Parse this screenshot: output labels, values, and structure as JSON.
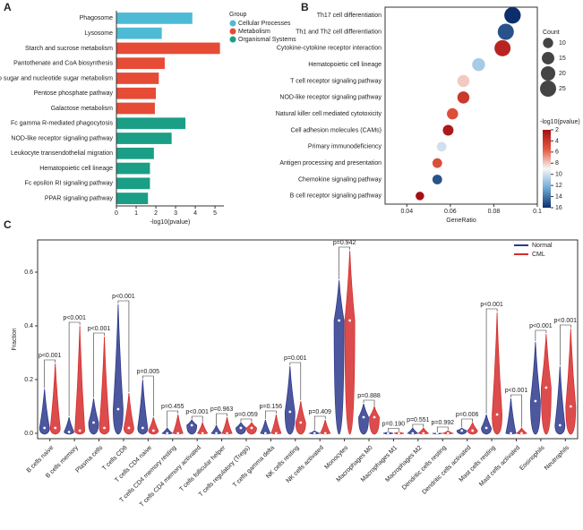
{
  "chart_data": [
    {
      "type": "bar",
      "panel": "A",
      "orientation": "horizontal",
      "categories": [
        "Phagosome",
        "Lysosome",
        "Starch and sucrose metabolism",
        "Pantothenate and CoA biosynthesis",
        "Amino sugar and nucleotide sugar metabolism",
        "Pentose phosphate pathway",
        "Galactose metabolism",
        "Fc gamma R-mediated phagocytosis",
        "NOD-like receptor signaling pathway",
        "Leukocyte transendothelial migration",
        "Hematopoietic cell lineage",
        "Fc epsilon RI signaling pathway",
        "PPAR signaling pathway"
      ],
      "series": [
        {
          "name": "Cellular Processes",
          "color": "#4dbbd5",
          "values": [
            3.85,
            2.3,
            null,
            null,
            null,
            null,
            null,
            null,
            null,
            null,
            null,
            null,
            null
          ]
        },
        {
          "name": "Metabolism",
          "color": "#e64b35",
          "values": [
            null,
            null,
            5.25,
            2.45,
            2.15,
            2.0,
            1.95,
            null,
            null,
            null,
            null,
            null,
            null
          ]
        },
        {
          "name": "Organismal Systems",
          "color": "#1a9e86",
          "values": [
            null,
            null,
            null,
            null,
            null,
            null,
            null,
            3.5,
            2.8,
            1.9,
            1.7,
            1.7,
            1.6
          ]
        }
      ],
      "legend_title": "Group",
      "xlabel": "-log10(pvalue)",
      "xlim": [
        0,
        5.45
      ],
      "xticks": [
        0,
        1,
        2,
        3,
        4,
        5
      ]
    },
    {
      "type": "scatter",
      "panel": "B",
      "categories": [
        "Th17 cell differentiation",
        "Th1 and Th2 cell differentiation",
        "Cytokine-cytokine receptor interaction",
        "Hematopoietic cell lineage",
        "T cell receptor signaling pathway",
        "NOD-like receptor signaling pathway",
        "Natural killer cell mediated cytotoxicity",
        "Cell adhesion molecules (CAMs)",
        "Primary immunodeficiency",
        "Antigen processing and presentation",
        "Chemokine signaling pathway",
        "B cell receptor signaling pathway"
      ],
      "x": [
        0.0886,
        0.0855,
        0.084,
        0.073,
        0.066,
        0.066,
        0.061,
        0.059,
        0.056,
        0.054,
        0.054,
        0.046
      ],
      "size": [
        26,
        25,
        25,
        16,
        14,
        14,
        12,
        11,
        9,
        9,
        9,
        7
      ],
      "color_values": [
        16,
        15,
        3,
        11,
        8,
        4,
        5,
        2.5,
        10,
        5,
        15,
        2
      ],
      "xlabel": "GeneRatio",
      "xlim": [
        0.03,
        0.1
      ],
      "xticks": [
        0.04,
        0.06,
        0.08,
        0.1
      ],
      "size_title": "Count",
      "size_legend": [
        10,
        15,
        20,
        25
      ],
      "color_title": "-log10(pvalue)",
      "colorbar_lim": [
        2,
        16
      ],
      "colorbar_ticks": [
        2,
        4,
        6,
        8,
        10,
        12,
        14,
        16
      ],
      "colormap": [
        "#a50f15",
        "#e4583e",
        "#f7f7f7",
        "#6fa8d6",
        "#0b2f6b"
      ]
    },
    {
      "type": "violin",
      "panel": "C",
      "categories": [
        "B cells naive",
        "B cells memory",
        "Plasma cells",
        "T cells CD8",
        "T cells CD4 naive",
        "T cells CD4 memory resting",
        "T cells CD4 memory activated",
        "T cells follicular helper",
        "T cells regulatory (Tregs)",
        "T cells gamma delta",
        "NK cells resting",
        "NK cells activated",
        "Monocytes",
        "Macrophages M0",
        "Macrophages M1",
        "Macrophages M2",
        "Dendritic cells resting",
        "Dendritic cells activated",
        "Mast cells resting",
        "Mast cells activated",
        "Eosinophils",
        "Neutrophils"
      ],
      "series": [
        {
          "name": "Normal",
          "color": "#2e3a8c",
          "values": [
            0.02,
            0.005,
            0.04,
            0.09,
            0.02,
            0.0,
            0.03,
            0.0,
            0.02,
            0.0,
            0.08,
            0.0,
            0.42,
            0.06,
            0.0,
            0.0,
            0.0,
            0.01,
            0.02,
            0.0,
            0.12,
            0.03
          ],
          "max": [
            0.165,
            0.06,
            0.13,
            0.48,
            0.2,
            0.02,
            0.05,
            0.03,
            0.04,
            0.05,
            0.25,
            0.01,
            0.57,
            0.11,
            0.005,
            0.02,
            0.0,
            0.02,
            0.07,
            0.13,
            0.34,
            0.25
          ]
        },
        {
          "name": "CML",
          "color": "#d62d2d",
          "values": [
            0.02,
            0.01,
            0.02,
            0.02,
            0.01,
            0.0,
            0.0,
            0.0,
            0.02,
            0.0,
            0.04,
            0.0,
            0.42,
            0.06,
            0.0,
            0.0,
            0.0,
            0.01,
            0.07,
            0.0,
            0.17,
            0.1
          ],
          "max": [
            0.26,
            0.4,
            0.36,
            0.15,
            0.06,
            0.07,
            0.04,
            0.06,
            0.04,
            0.07,
            0.12,
            0.05,
            0.68,
            0.1,
            0.005,
            0.02,
            0.01,
            0.04,
            0.45,
            0.02,
            0.37,
            0.39
          ]
        }
      ],
      "p_labels": [
        "p<0.001",
        "p<0.001",
        "p<0.001",
        "p<0.001",
        "p=0.005",
        "p=0.455",
        "p<0.001",
        "p=0.963",
        "p=0.059",
        "p=0.156",
        "p=0.001",
        "p=0.409",
        "p=0.942",
        "p=0.888",
        "p=0.190",
        "p=0.551",
        "p=0.992",
        "p=0.006",
        "p<0.001",
        "p<0.001",
        "p<0.001",
        "p<0.001"
      ],
      "ylabel": "Fraction",
      "ylim": [
        -0.02,
        0.72
      ],
      "yticks": [
        {
          "value": 0,
          "label": "0.0"
        },
        0.2,
        0.4,
        0.6
      ]
    }
  ]
}
